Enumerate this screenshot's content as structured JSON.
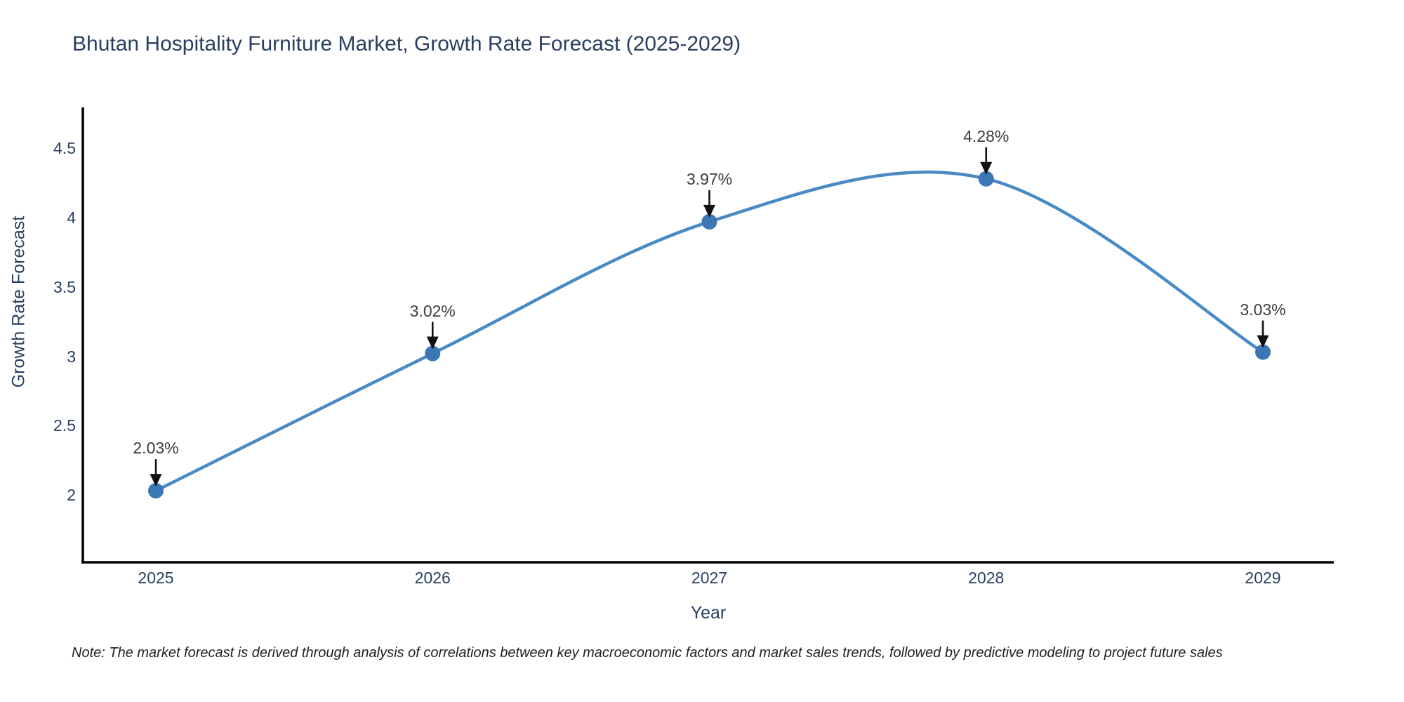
{
  "chart_data": {
    "type": "line",
    "title": "Bhutan Hospitality Furniture Market, Growth Rate Forecast (2025-2029)",
    "xlabel": "Year",
    "ylabel": "Growth Rate Forecast",
    "x": [
      2025,
      2026,
      2027,
      2028,
      2029
    ],
    "values": [
      2.03,
      3.02,
      3.97,
      4.28,
      3.03
    ],
    "point_labels": [
      "2.03%",
      "3.02%",
      "3.97%",
      "4.28%",
      "3.03%"
    ],
    "x_tick_labels": [
      "2025",
      "2026",
      "2027",
      "2028",
      "2029"
    ],
    "y_ticks": [
      2,
      2.5,
      3,
      3.5,
      4,
      4.5
    ],
    "y_tick_labels": [
      "2",
      "2.5",
      "3",
      "3.5",
      "4",
      "4.5"
    ],
    "ylim": [
      1.51,
      4.78
    ],
    "grid": false,
    "legend": "none",
    "line_shape": "spline",
    "colors": {
      "line": "#4a8ac4",
      "marker": "#3a77b4",
      "arrow": "#111111",
      "axis": "#000000",
      "axis_text": "#2a3f5f",
      "annotation_text": "#3d3d3d"
    },
    "note": "Note: The market forecast is derived through analysis of correlations between key macroeconomic factors and market sales trends, followed by predictive modeling to project future sales"
  }
}
